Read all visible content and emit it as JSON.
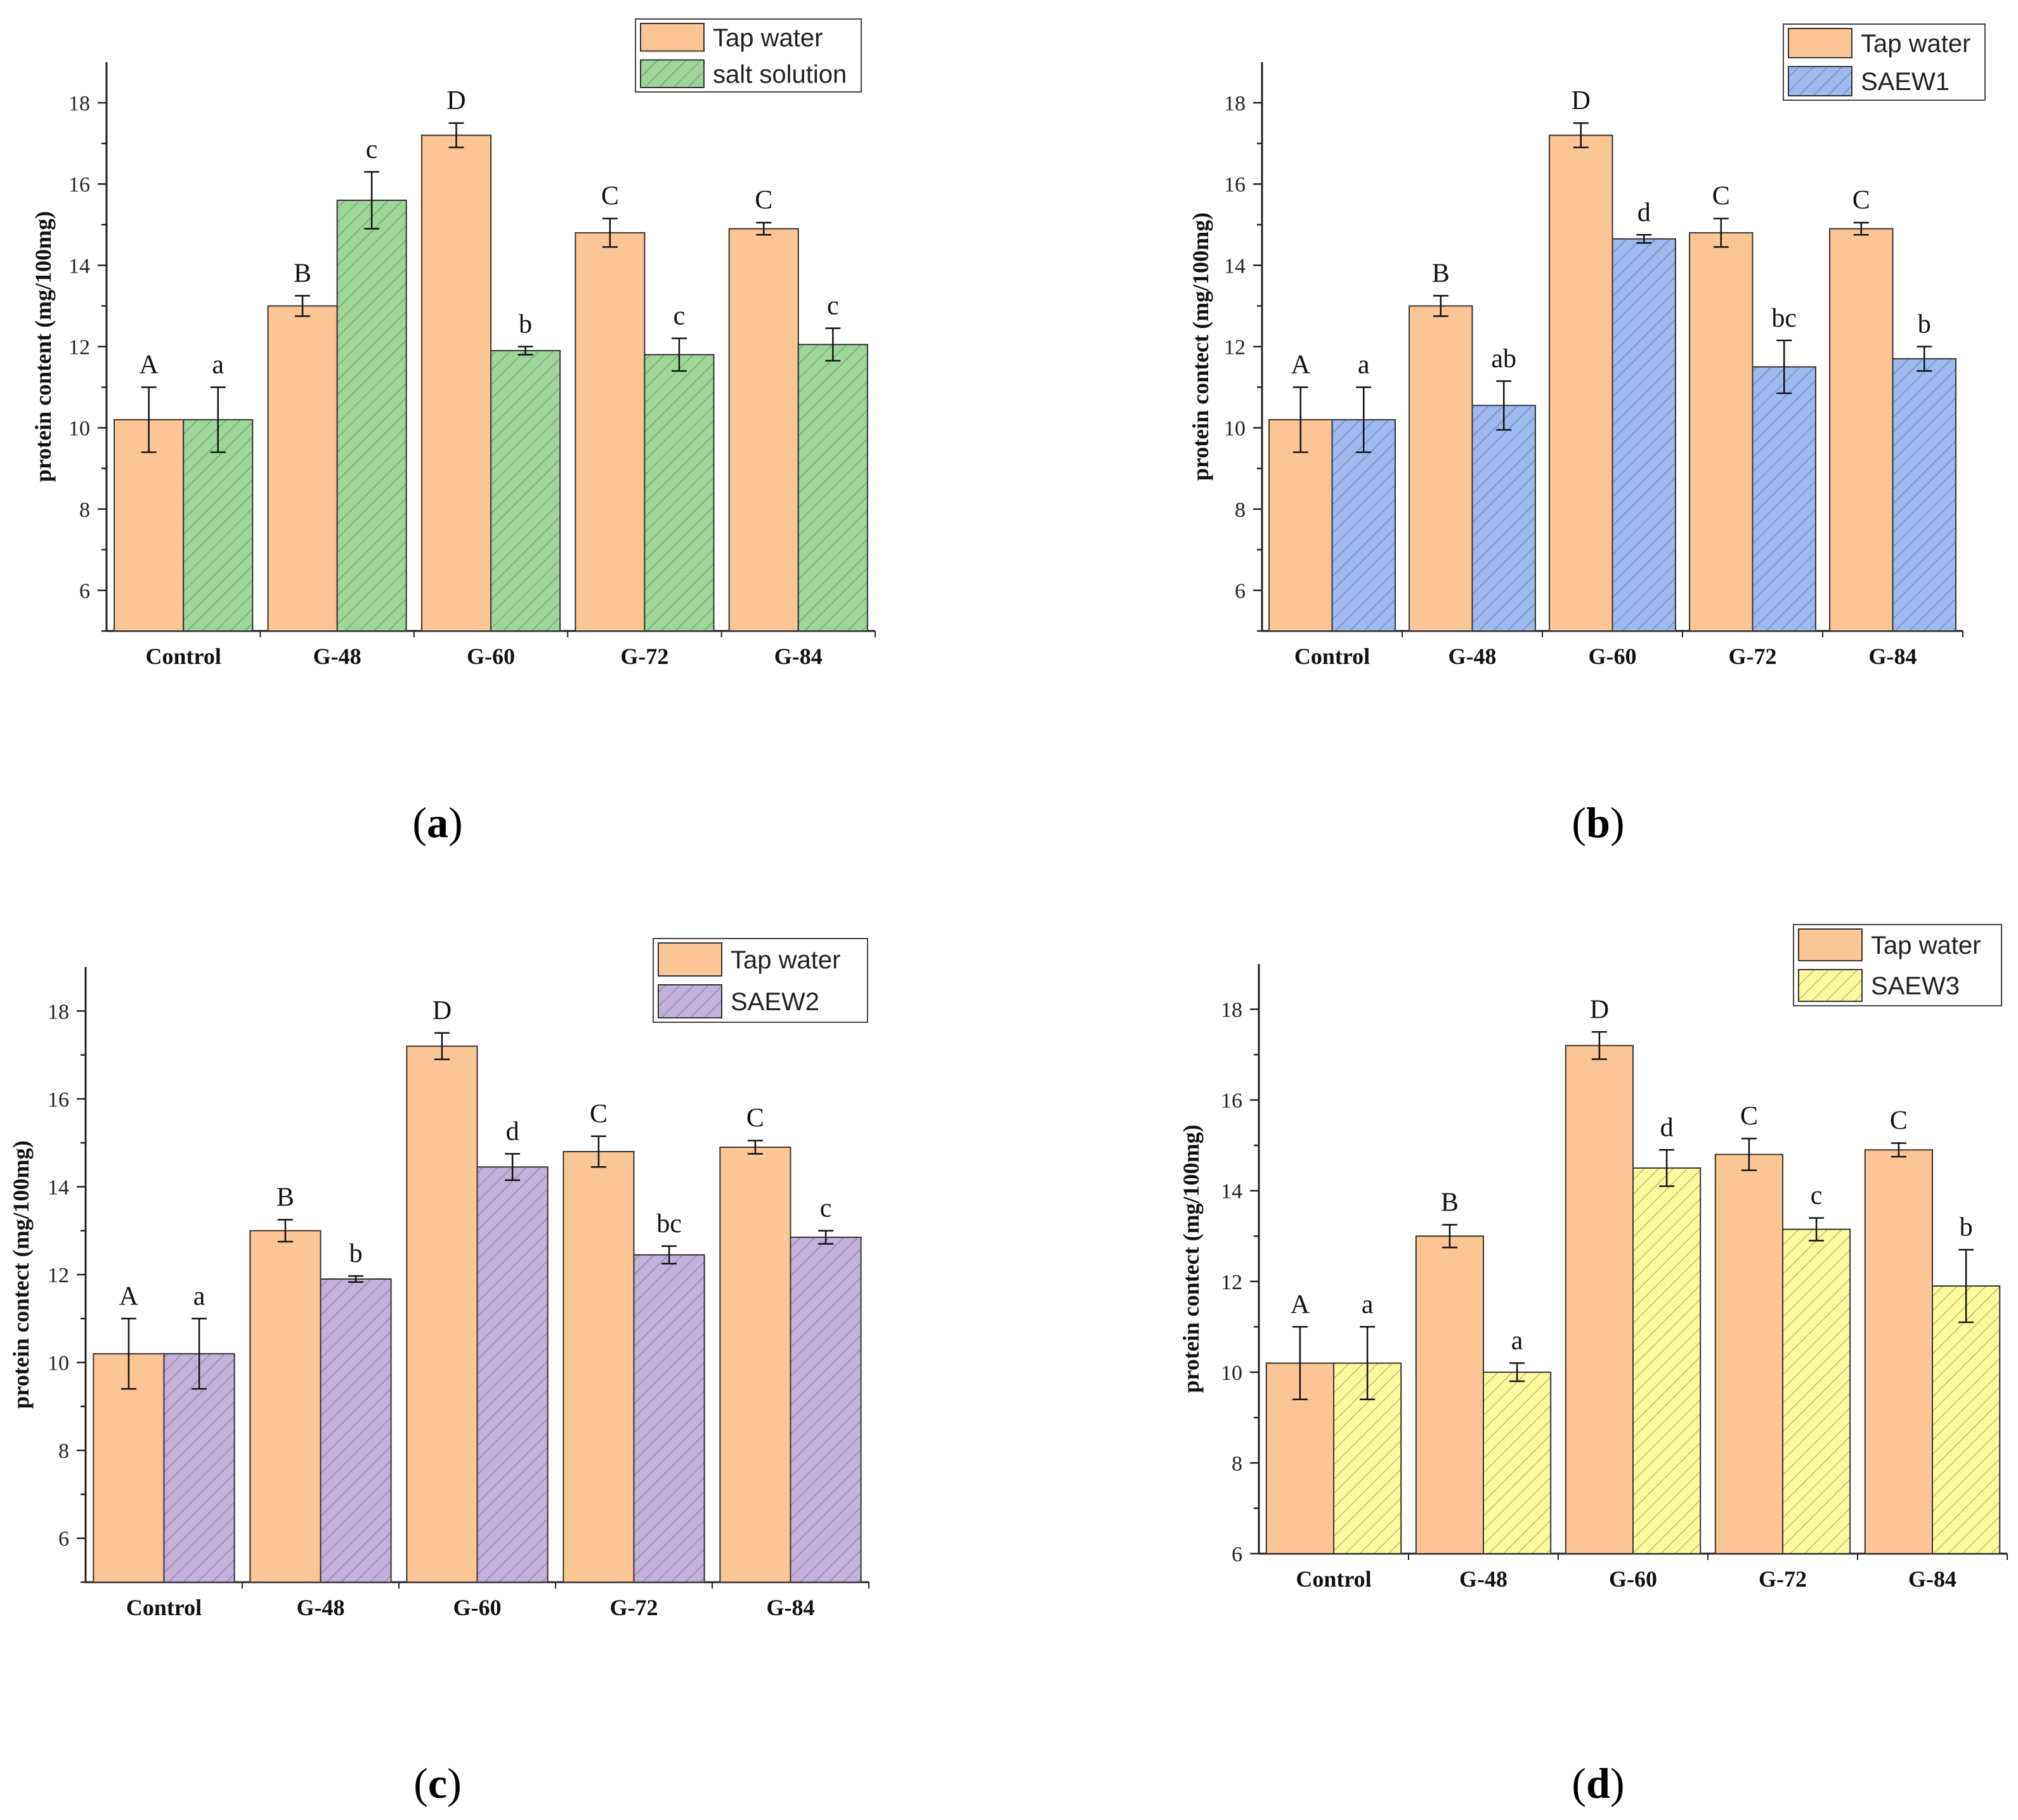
{
  "colors": {
    "tap": "#fbc594",
    "salt": "#9ed69a",
    "saew1": "#9db9ef",
    "saew2": "#c4b1da",
    "saew3": "#fafa9c",
    "axis": "#222222"
  },
  "chart_data": [
    {
      "type": "bar",
      "caption": "a",
      "ylabel": "protein content (mg/100mg)",
      "ylim": [
        5,
        19
      ],
      "yticks": [
        "6",
        "8",
        "10",
        "12",
        "14",
        "16",
        "18"
      ],
      "categories": [
        "Control",
        "G-48",
        "G-60",
        "G-72",
        "G-84"
      ],
      "legend_position": "top-right",
      "series": [
        {
          "name": "Tap water",
          "color_key": "tap",
          "hatch": false,
          "values": [
            10.2,
            13.0,
            17.2,
            14.8,
            14.9
          ],
          "errors": [
            0.8,
            0.25,
            0.3,
            0.35,
            0.15
          ],
          "sig_labels": [
            "A",
            "B",
            "D",
            "C",
            "C"
          ]
        },
        {
          "name": "salt solution",
          "color_key": "salt",
          "hatch": true,
          "values": [
            10.2,
            15.6,
            11.9,
            11.8,
            12.05
          ],
          "errors": [
            0.8,
            0.7,
            0.1,
            0.4,
            0.4
          ],
          "sig_labels": [
            "a",
            "c",
            "b",
            "c",
            "c"
          ]
        }
      ]
    },
    {
      "type": "bar",
      "caption": "b",
      "ylabel": "protein contect (mg/100mg)",
      "ylim": [
        5,
        19
      ],
      "yticks": [
        "6",
        "8",
        "10",
        "12",
        "14",
        "16",
        "18"
      ],
      "categories": [
        "Control",
        "G-48",
        "G-60",
        "G-72",
        "G-84"
      ],
      "legend_position": "top-right",
      "series": [
        {
          "name": "Tap water",
          "color_key": "tap",
          "hatch": false,
          "values": [
            10.2,
            13.0,
            17.2,
            14.8,
            14.9
          ],
          "errors": [
            0.8,
            0.25,
            0.3,
            0.35,
            0.15
          ],
          "sig_labels": [
            "A",
            "B",
            "D",
            "C",
            "C"
          ]
        },
        {
          "name": "SAEW1",
          "color_key": "saew1",
          "hatch": true,
          "values": [
            10.2,
            10.55,
            14.65,
            11.5,
            11.7
          ],
          "errors": [
            0.8,
            0.6,
            0.1,
            0.65,
            0.3
          ],
          "sig_labels": [
            "a",
            "ab",
            "d",
            "bc",
            "b"
          ]
        }
      ]
    },
    {
      "type": "bar",
      "caption": "c",
      "ylabel": "protein contect (mg/100mg)",
      "ylim": [
        5,
        19
      ],
      "yticks": [
        "6",
        "8",
        "10",
        "12",
        "14",
        "16",
        "18"
      ],
      "categories": [
        "Control",
        "G-48",
        "G-60",
        "G-72",
        "G-84"
      ],
      "legend_position": "top-right",
      "series": [
        {
          "name": "Tap water",
          "color_key": "tap",
          "hatch": false,
          "values": [
            10.2,
            13.0,
            17.2,
            14.8,
            14.9
          ],
          "errors": [
            0.8,
            0.25,
            0.3,
            0.35,
            0.15
          ],
          "sig_labels": [
            "A",
            "B",
            "D",
            "C",
            "C"
          ]
        },
        {
          "name": "SAEW2",
          "color_key": "saew2",
          "hatch": true,
          "values": [
            10.2,
            11.9,
            14.45,
            12.45,
            12.85
          ],
          "errors": [
            0.8,
            0.07,
            0.3,
            0.2,
            0.15
          ],
          "sig_labels": [
            "a",
            "b",
            "d",
            "bc",
            "c"
          ]
        }
      ]
    },
    {
      "type": "bar",
      "caption": "d",
      "ylabel": "protein contect (mg/100mg)",
      "ylim": [
        6,
        19
      ],
      "yticks": [
        "6",
        "8",
        "10",
        "12",
        "14",
        "16",
        "18"
      ],
      "categories": [
        "Control",
        "G-48",
        "G-60",
        "G-72",
        "G-84"
      ],
      "legend_position": "top-right",
      "series": [
        {
          "name": "Tap water",
          "color_key": "tap",
          "hatch": false,
          "values": [
            10.2,
            13.0,
            17.2,
            14.8,
            14.9
          ],
          "errors": [
            0.8,
            0.25,
            0.3,
            0.35,
            0.15
          ],
          "sig_labels": [
            "A",
            "B",
            "D",
            "C",
            "C"
          ]
        },
        {
          "name": "SAEW3",
          "color_key": "saew3",
          "hatch": true,
          "values": [
            10.2,
            10.0,
            14.5,
            13.15,
            11.9
          ],
          "errors": [
            0.8,
            0.2,
            0.4,
            0.25,
            0.8
          ],
          "sig_labels": [
            "a",
            "a",
            "d",
            "c",
            "b"
          ]
        }
      ]
    }
  ]
}
